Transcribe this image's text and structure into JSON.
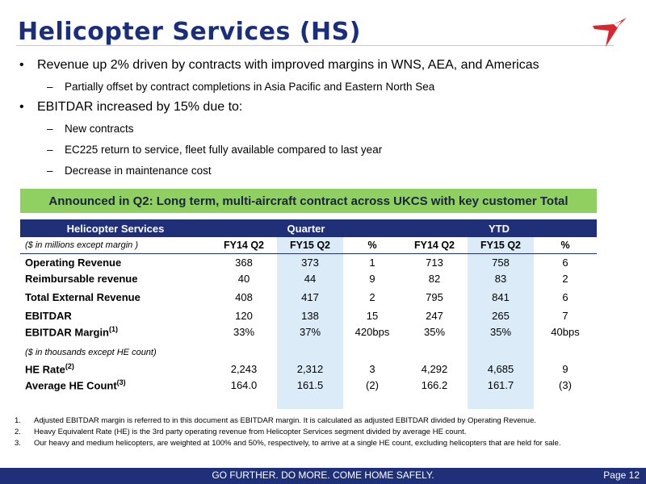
{
  "title": "Helicopter Services (HS)",
  "bullets": {
    "b1": "Revenue up 2% driven by contracts with improved margins in WNS, AEA, and Americas",
    "b1_sub": "Partially offset by contract completions in Asia Pacific and Eastern North Sea",
    "b2": "EBITDAR increased by 15% due to:",
    "b2_subs": [
      "New contracts",
      "EC225 return to service, fleet fully available compared to last year",
      "Decrease in maintenance cost"
    ]
  },
  "banner": "Announced in Q2: Long term, multi-aircraft contract across UKCS with key customer Total",
  "table": {
    "header": {
      "segment": "Helicopter Services",
      "quarter": "Quarter",
      "ytd": "YTD"
    },
    "subheader": {
      "note": "($ in millions except margin )",
      "c1": "FY14 Q2",
      "c2": "FY15 Q2",
      "c3": "%",
      "c4": "FY14 Q2",
      "c5": "FY15 Q2",
      "c6": "%"
    },
    "rows": [
      {
        "label": "Operating Revenue",
        "v": [
          "368",
          "373",
          "1",
          "713",
          "758",
          "6"
        ]
      },
      {
        "label": "Reimbursable revenue",
        "v": [
          "40",
          "44",
          "9",
          "82",
          "83",
          "2"
        ]
      },
      {
        "label": "Total External Revenue",
        "v": [
          "408",
          "417",
          "2",
          "795",
          "841",
          "6"
        ]
      },
      {
        "label": "EBITDAR",
        "v": [
          "120",
          "138",
          "15",
          "247",
          "265",
          "7"
        ]
      },
      {
        "label": "EBITDAR Margin",
        "sup": "(1)",
        "v": [
          "33%",
          "37%",
          "420bps",
          "35%",
          "35%",
          "40bps"
        ]
      }
    ],
    "unit_note": "($ in thousands except HE count)",
    "rows2": [
      {
        "label": "HE Rate",
        "sup": "(2)",
        "v": [
          "2,243",
          "2,312",
          "3",
          "4,292",
          "4,685",
          "9"
        ]
      },
      {
        "label": "Average HE Count",
        "sup": "(3)",
        "v": [
          "164.0",
          "161.5",
          "(2)",
          "166.2",
          "161.7",
          "(3)"
        ]
      }
    ]
  },
  "footnotes": [
    {
      "n": "1.",
      "text": "Adjusted EBITDAR margin is referred to in this document as EBITDAR margin.  It is calculated as adjusted EBITDAR divided by Operating Revenue."
    },
    {
      "n": "2.",
      "text": "Heavy Equivalent Rate (HE) is the 3rd party operating revenue from Helicopter Services segment divided by average HE count."
    },
    {
      "n": "3.",
      "text": "Our heavy and medium helicopters, are weighted at 100% and 50%, respectively, to arrive at a single HE count, excluding helicopters that are held for sale."
    }
  ],
  "footer": {
    "tagline": "GO FURTHER. DO MORE. COME HOME SAFELY.",
    "page": "Page 12"
  },
  "colors": {
    "navy": "#1f2f78",
    "banner_green": "#8fd061",
    "highlight": "#dcebf8",
    "logo_red": "#d8262c"
  },
  "icons": {
    "logo": "bird-logo-icon"
  }
}
